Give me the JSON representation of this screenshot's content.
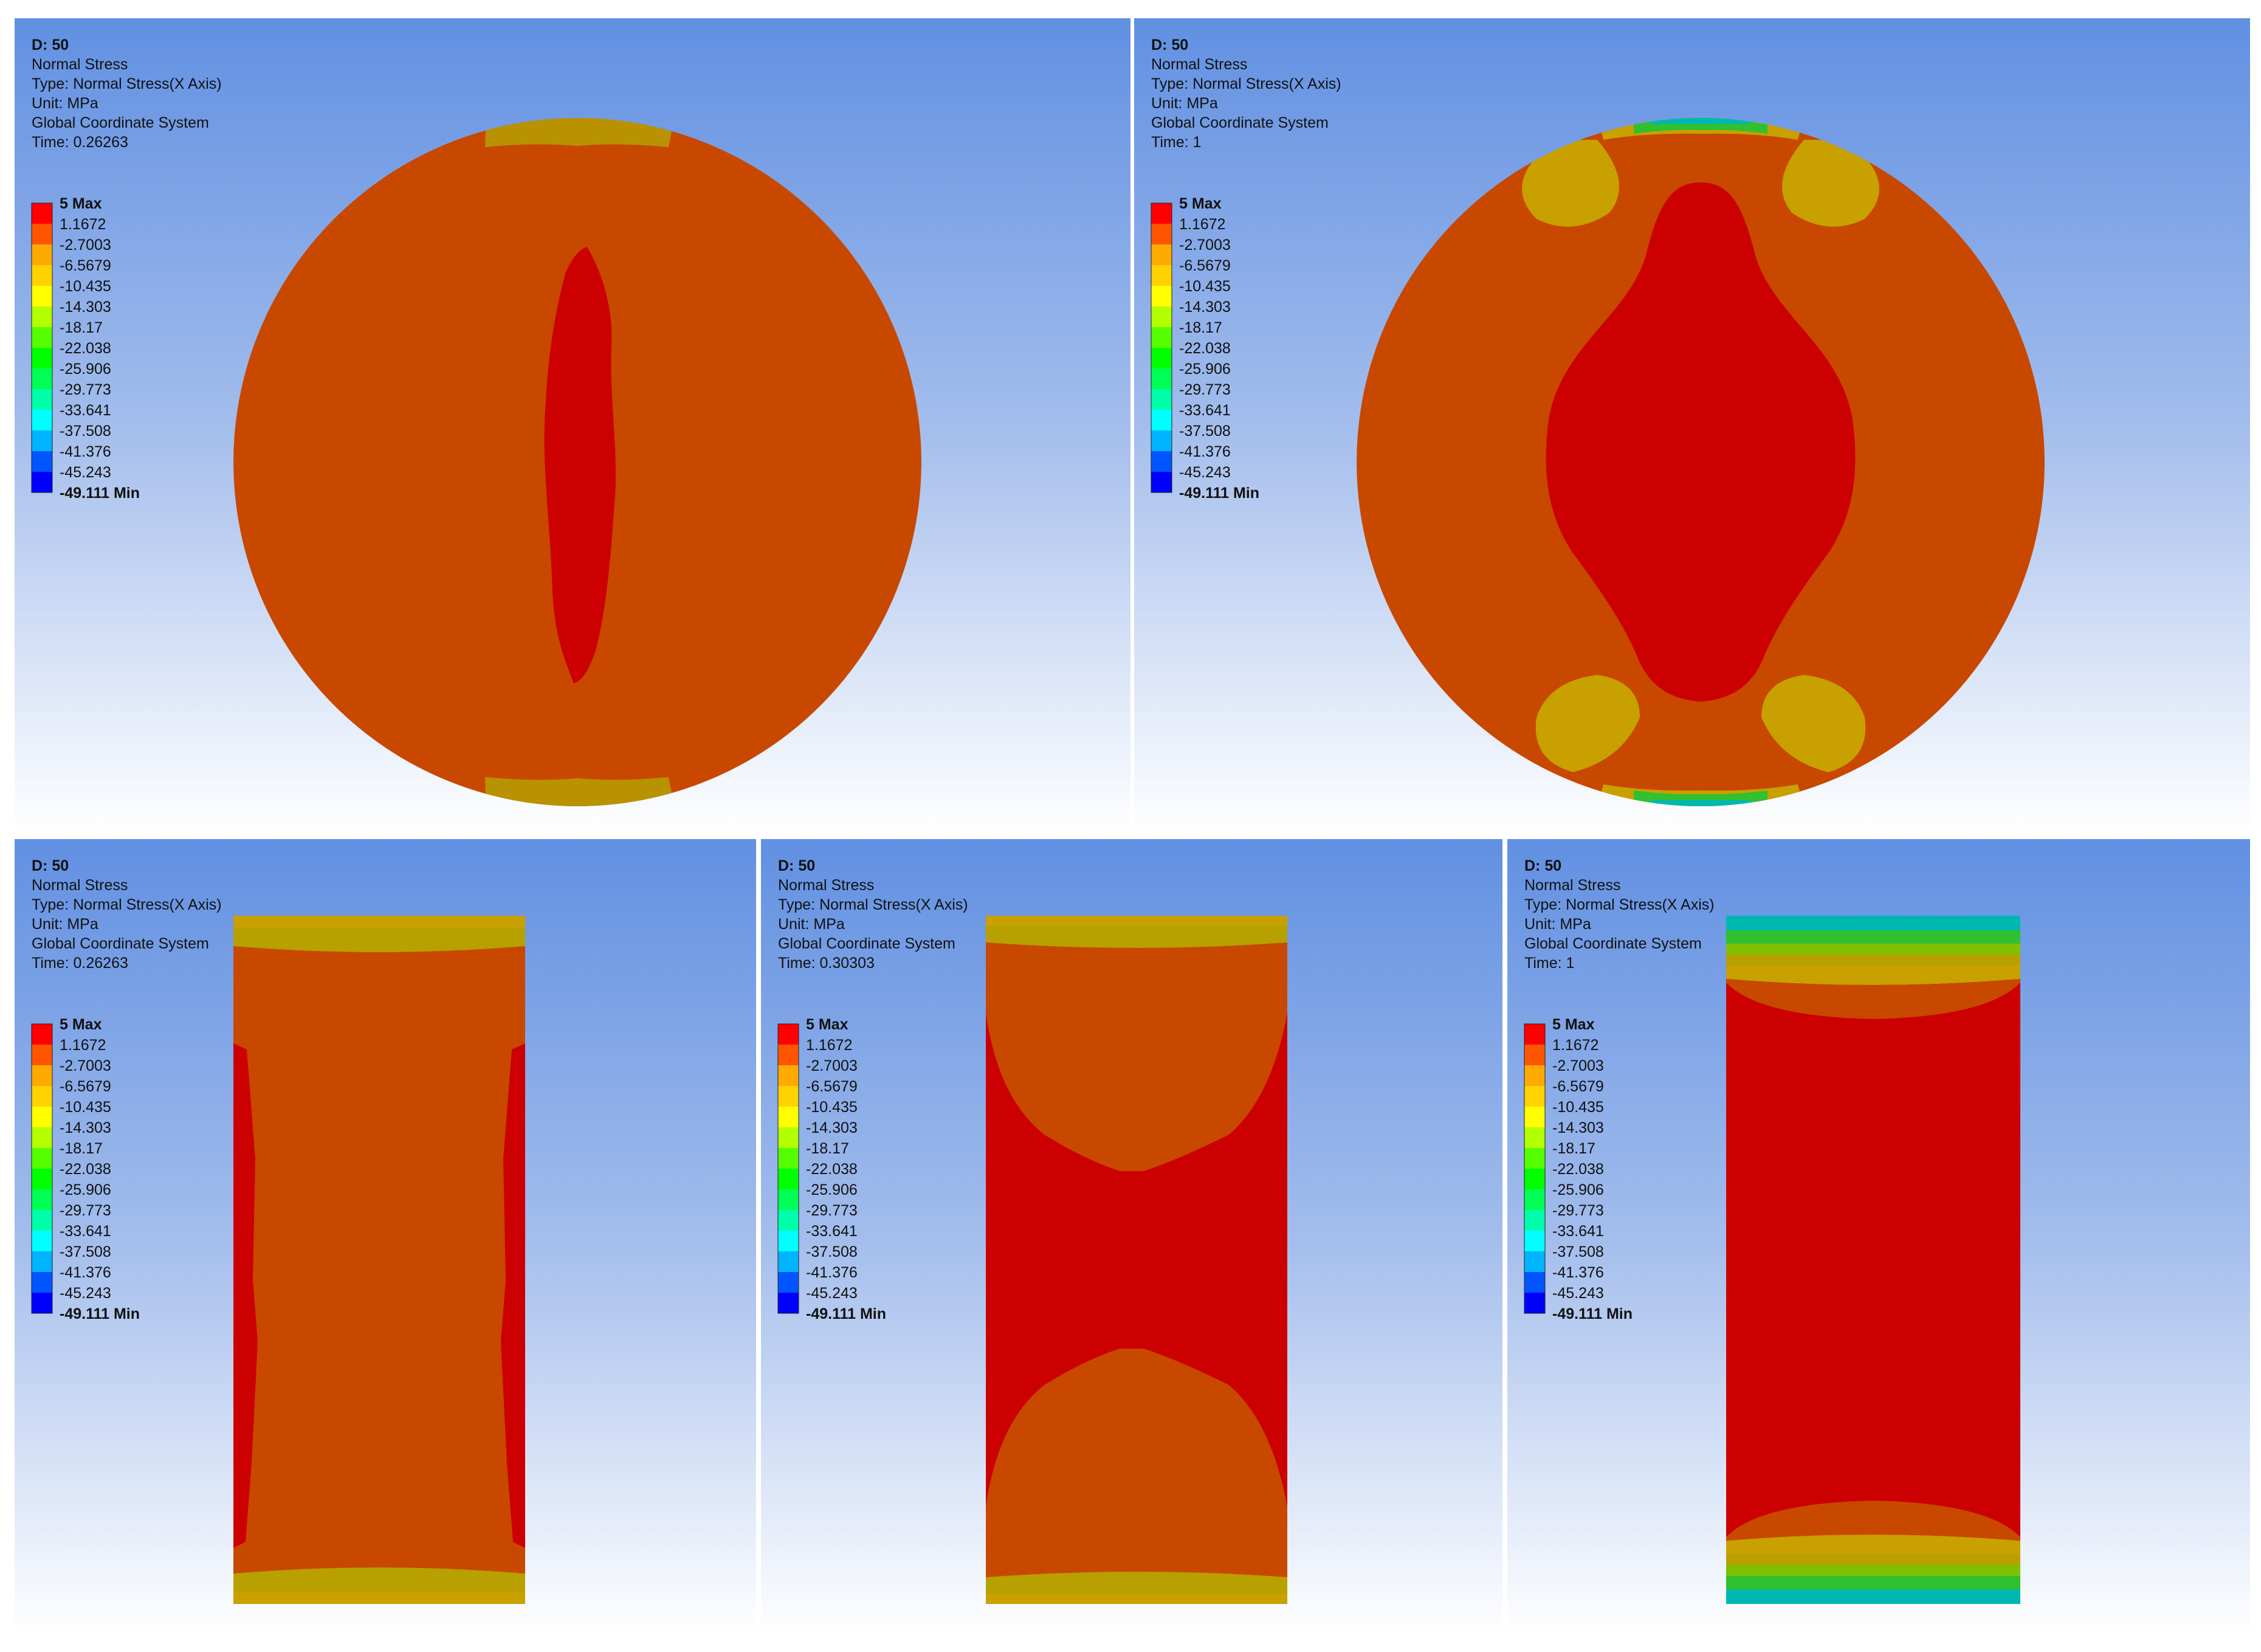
{
  "legend": {
    "colors": [
      "#ff0000",
      "#ff5500",
      "#ffaa00",
      "#ffd200",
      "#ffff00",
      "#b4ff00",
      "#55ff00",
      "#00ff00",
      "#00ff55",
      "#00ffaa",
      "#00ffff",
      "#00b4ff",
      "#0055ff",
      "#0000ff"
    ],
    "labels": [
      "5 Max",
      "1.1672",
      "-2.7003",
      "-6.5679",
      "-10.435",
      "-14.303",
      "-18.17",
      "-22.038",
      "-25.906",
      "-29.773",
      "-33.641",
      "-37.508",
      "-41.376",
      "-45.243",
      "-49.111 Min"
    ]
  },
  "panels": [
    {
      "title": "D: 50",
      "result": "Normal Stress",
      "type": "Type: Normal Stress(X Axis)",
      "unit": "Unit: MPa",
      "system": "Global Coordinate System",
      "time": "Time: 0.26263"
    },
    {
      "title": "D: 50",
      "result": "Normal Stress",
      "type": "Type: Normal Stress(X Axis)",
      "unit": "Unit: MPa",
      "system": "Global Coordinate System",
      "time": "Time: 1"
    },
    {
      "title": "D: 50",
      "result": "Normal Stress",
      "type": "Type: Normal Stress(X Axis)",
      "unit": "Unit: MPa",
      "system": "Global Coordinate System",
      "time": "Time: 0.26263"
    },
    {
      "title": "D: 50",
      "result": "Normal Stress",
      "type": "Type: Normal Stress(X Axis)",
      "unit": "Unit: MPa",
      "system": "Global Coordinate System",
      "time": "Time: 0.30303"
    },
    {
      "title": "D: 50",
      "result": "Normal Stress",
      "type": "Type: Normal Stress(X Axis)",
      "unit": "Unit: MPa",
      "system": "Global Coordinate System",
      "time": "Time: 1"
    }
  ],
  "fill_colors": {
    "orange_base": "#c84800",
    "red_core": "#cc0000",
    "yellow_band": "#b8a000",
    "olive_band": "#c8a800",
    "green_band": "#30c030",
    "cyan_band": "#00b8b0"
  }
}
